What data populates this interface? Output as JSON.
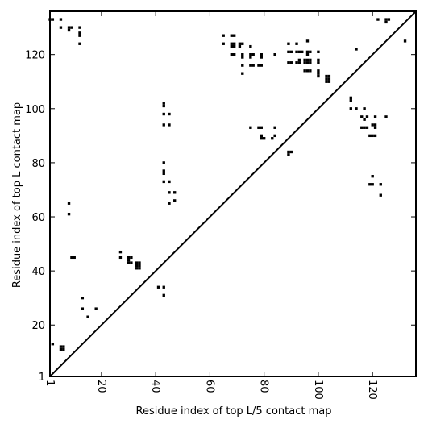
{
  "chart_data": {
    "type": "scatter",
    "xlabel": "Residue index of top L/5 contact map",
    "ylabel": "Residue index of top L contact map",
    "xlim": [
      1,
      136
    ],
    "ylim": [
      1,
      136
    ],
    "xticks": [
      1,
      20,
      40,
      60,
      80,
      100,
      120
    ],
    "yticks": [
      1,
      20,
      40,
      60,
      80,
      100,
      120
    ],
    "diagonal": true,
    "marker_color": "#000000",
    "points": [
      [
        1,
        133
      ],
      [
        2,
        133
      ],
      [
        5,
        133
      ],
      [
        5,
        130
      ],
      [
        8,
        130
      ],
      [
        9,
        130
      ],
      [
        8,
        129
      ],
      [
        12,
        128
      ],
      [
        12,
        127
      ],
      [
        12,
        124
      ],
      [
        12,
        130
      ],
      [
        65,
        127
      ],
      [
        68,
        127
      ],
      [
        69,
        127
      ],
      [
        65,
        124
      ],
      [
        68,
        124
      ],
      [
        69,
        124
      ],
      [
        68,
        123
      ],
      [
        69,
        123
      ],
      [
        71,
        124
      ],
      [
        72,
        124
      ],
      [
        71,
        123
      ],
      [
        75,
        123
      ],
      [
        68,
        120
      ],
      [
        69,
        120
      ],
      [
        72,
        120
      ],
      [
        72,
        119
      ],
      [
        75,
        120
      ],
      [
        76,
        120
      ],
      [
        75,
        119
      ],
      [
        79,
        120
      ],
      [
        79,
        119
      ],
      [
        84,
        120
      ],
      [
        72,
        116
      ],
      [
        75,
        116
      ],
      [
        76,
        116
      ],
      [
        78,
        116
      ],
      [
        79,
        116
      ],
      [
        72,
        113
      ],
      [
        89,
        124
      ],
      [
        92,
        124
      ],
      [
        96,
        125
      ],
      [
        89,
        121
      ],
      [
        90,
        121
      ],
      [
        92,
        121
      ],
      [
        93,
        121
      ],
      [
        94,
        121
      ],
      [
        96,
        121
      ],
      [
        97,
        121
      ],
      [
        100,
        121
      ],
      [
        96,
        120
      ],
      [
        89,
        117
      ],
      [
        90,
        117
      ],
      [
        92,
        117
      ],
      [
        93,
        117
      ],
      [
        93,
        118
      ],
      [
        95,
        117
      ],
      [
        96,
        117
      ],
      [
        97,
        117
      ],
      [
        95,
        118
      ],
      [
        96,
        118
      ],
      [
        97,
        118
      ],
      [
        100,
        118
      ],
      [
        100,
        117
      ],
      [
        95,
        114
      ],
      [
        96,
        114
      ],
      [
        97,
        114
      ],
      [
        100,
        114
      ],
      [
        100,
        113
      ],
      [
        100,
        112
      ],
      [
        103,
        112
      ],
      [
        104,
        112
      ],
      [
        103,
        111
      ],
      [
        104,
        111
      ],
      [
        103,
        110
      ],
      [
        104,
        110
      ],
      [
        114,
        122
      ],
      [
        122,
        133
      ],
      [
        125,
        133
      ],
      [
        126,
        133
      ],
      [
        125,
        132
      ],
      [
        132,
        125
      ],
      [
        43,
        102
      ],
      [
        43,
        101
      ],
      [
        43,
        98
      ],
      [
        45,
        98
      ],
      [
        43,
        94
      ],
      [
        45,
        94
      ],
      [
        112,
        104
      ],
      [
        112,
        103
      ],
      [
        112,
        100
      ],
      [
        114,
        100
      ],
      [
        117,
        100
      ],
      [
        116,
        97
      ],
      [
        117,
        96
      ],
      [
        118,
        97
      ],
      [
        121,
        97
      ],
      [
        125,
        97
      ],
      [
        116,
        93
      ],
      [
        117,
        93
      ],
      [
        118,
        93
      ],
      [
        120,
        94
      ],
      [
        121,
        93
      ],
      [
        121,
        94
      ],
      [
        119,
        90
      ],
      [
        120,
        90
      ],
      [
        121,
        90
      ],
      [
        75,
        93
      ],
      [
        78,
        93
      ],
      [
        79,
        93
      ],
      [
        84,
        93
      ],
      [
        79,
        90
      ],
      [
        79,
        89
      ],
      [
        80,
        89
      ],
      [
        83,
        89
      ],
      [
        84,
        90
      ],
      [
        89,
        84
      ],
      [
        90,
        84
      ],
      [
        89,
        83
      ],
      [
        43,
        80
      ],
      [
        43,
        77
      ],
      [
        43,
        76
      ],
      [
        43,
        73
      ],
      [
        45,
        73
      ],
      [
        45,
        69
      ],
      [
        47,
        69
      ],
      [
        45,
        65
      ],
      [
        47,
        66
      ],
      [
        120,
        75
      ],
      [
        119,
        72
      ],
      [
        120,
        72
      ],
      [
        123,
        72
      ],
      [
        123,
        68
      ],
      [
        8,
        65
      ],
      [
        8,
        61
      ],
      [
        9,
        45
      ],
      [
        10,
        45
      ],
      [
        27,
        47
      ],
      [
        27,
        45
      ],
      [
        30,
        45
      ],
      [
        31,
        45
      ],
      [
        30,
        44
      ],
      [
        30,
        43
      ],
      [
        31,
        43
      ],
      [
        33,
        43
      ],
      [
        34,
        43
      ],
      [
        33,
        42
      ],
      [
        34,
        42
      ],
      [
        33,
        41
      ],
      [
        34,
        41
      ],
      [
        41,
        34
      ],
      [
        43,
        34
      ],
      [
        43,
        31
      ],
      [
        13,
        30
      ],
      [
        13,
        26
      ],
      [
        18,
        26
      ],
      [
        15,
        23
      ],
      [
        2,
        13
      ],
      [
        5,
        12
      ],
      [
        6,
        12
      ],
      [
        5,
        11
      ],
      [
        6,
        11
      ]
    ]
  }
}
